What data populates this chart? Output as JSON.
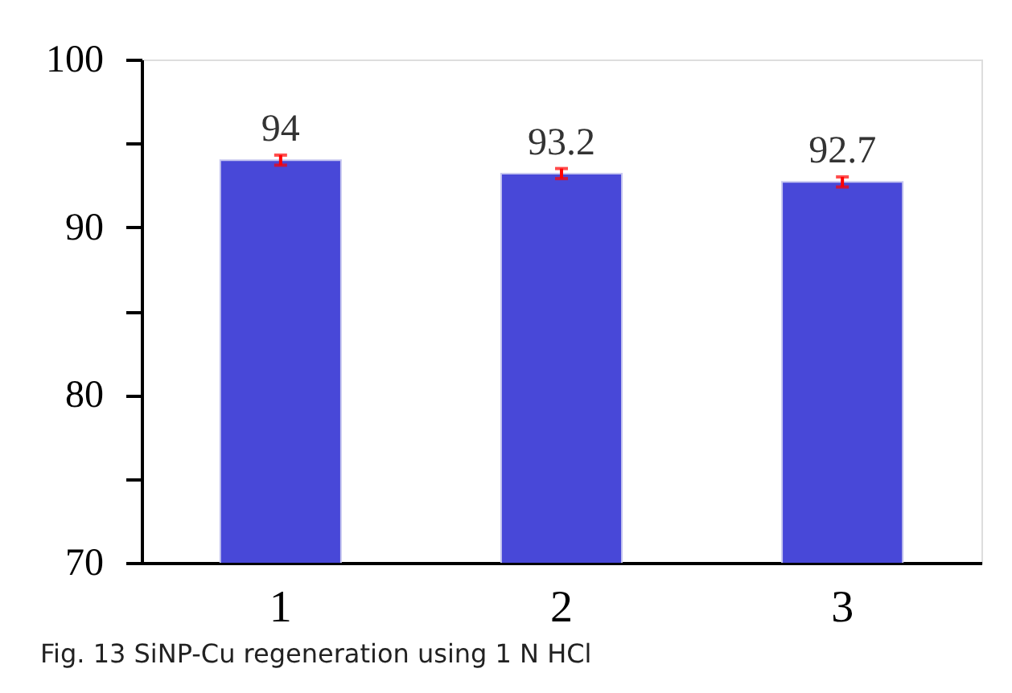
{
  "chart_data": {
    "type": "bar",
    "categories": [
      "1",
      "2",
      "3"
    ],
    "values": [
      94,
      93.2,
      92.7
    ],
    "color": "#4848d8",
    "errors": [
      0.3,
      0.3,
      0.3
    ],
    "data_labels": true,
    "ylim": [
      70,
      100
    ],
    "yticks": [
      70,
      {
        "value": 75,
        "label": null
      },
      80,
      {
        "value": 85,
        "label": null
      },
      90,
      {
        "value": 95,
        "label": null
      },
      100
    ],
    "grid": false,
    "annotations": [
      "Fig. 13 SiNP-Cu regeneration using 1 N HCl"
    ]
  }
}
